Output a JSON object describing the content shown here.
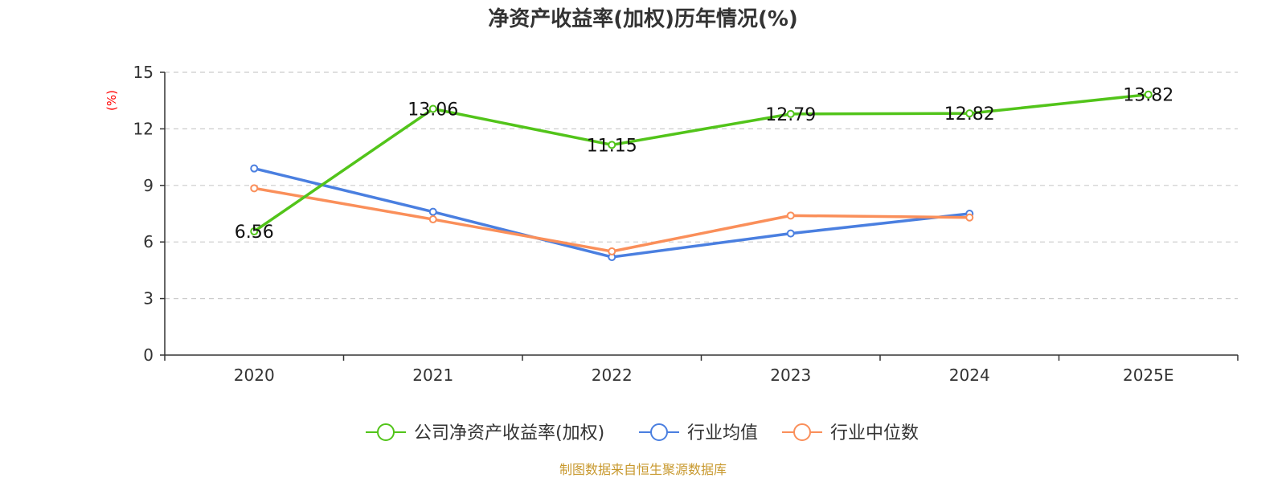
{
  "chart_data": {
    "type": "line",
    "title": "净资产收益率(加权)历年情况(%)",
    "ylabel": "(%)",
    "xlabel": "",
    "ylim": [
      0,
      15
    ],
    "yticks": [
      "0",
      "3",
      "6",
      "9",
      "12",
      "15"
    ],
    "grid": true,
    "legend_position": "bottom",
    "categories": [
      "2020",
      "2021",
      "2022",
      "2023",
      "2024",
      "2025E"
    ],
    "series": [
      {
        "name": "公司净资产收益率(加权)",
        "color": "#52c41a",
        "values": [
          6.56,
          13.06,
          11.15,
          12.79,
          12.82,
          13.82
        ],
        "labels": [
          "6.56",
          "13.06",
          "11.15",
          "12.79",
          "12.82",
          "13.82"
        ]
      },
      {
        "name": "行业均值",
        "color": "#4a7fe0",
        "values": [
          9.9,
          7.6,
          5.2,
          6.45,
          7.5,
          null
        ]
      },
      {
        "name": "行业中位数",
        "color": "#fa8f5a",
        "values": [
          8.85,
          7.2,
          5.5,
          7.4,
          7.3,
          null
        ]
      }
    ],
    "source": "制图数据来自恒生聚源数据库"
  }
}
